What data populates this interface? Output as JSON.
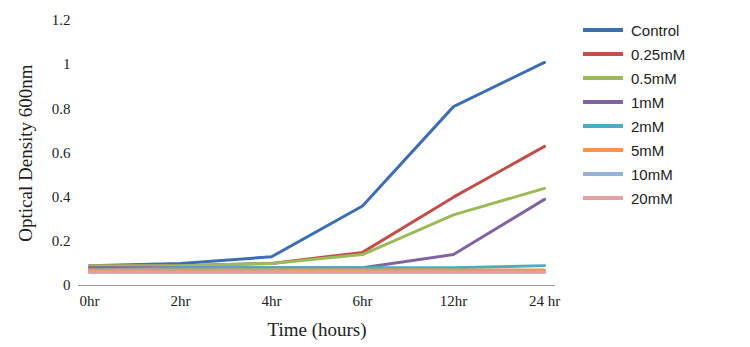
{
  "chart_data": {
    "type": "line",
    "x_label": "Time (hours)",
    "y_label": "Optical Density 600nm",
    "categories": [
      "0hr",
      "2hr",
      "4hr",
      "6hr",
      "12hr",
      "24 hr"
    ],
    "ylim": [
      0,
      1.2
    ],
    "yticks": [
      0,
      0.2,
      0.4,
      0.6,
      0.8,
      1,
      1.2
    ],
    "grid": false,
    "legend": "right",
    "series": [
      {
        "name": "Control",
        "color": "#3d6fb0",
        "values": [
          0.09,
          0.1,
          0.13,
          0.36,
          0.81,
          1.01
        ]
      },
      {
        "name": "0.25mM",
        "color": "#c0504d",
        "values": [
          0.09,
          0.09,
          0.1,
          0.15,
          0.4,
          0.63
        ]
      },
      {
        "name": "0.5mM",
        "color": "#9bbb59",
        "values": [
          0.09,
          0.09,
          0.1,
          0.14,
          0.32,
          0.44
        ]
      },
      {
        "name": "1mM",
        "color": "#8064a2",
        "values": [
          0.08,
          0.08,
          0.08,
          0.08,
          0.14,
          0.39
        ]
      },
      {
        "name": "2mM",
        "color": "#4bacc6",
        "values": [
          0.07,
          0.08,
          0.08,
          0.08,
          0.08,
          0.09
        ]
      },
      {
        "name": "5mM",
        "color": "#f79646",
        "values": [
          0.07,
          0.07,
          0.07,
          0.07,
          0.07,
          0.07
        ]
      },
      {
        "name": "10mM",
        "color": "#95b3d7",
        "values": [
          0.06,
          0.06,
          0.06,
          0.06,
          0.06,
          0.06
        ]
      },
      {
        "name": "20mM",
        "color": "#e3a0a0",
        "values": [
          0.06,
          0.06,
          0.06,
          0.06,
          0.06,
          0.06
        ]
      }
    ]
  }
}
